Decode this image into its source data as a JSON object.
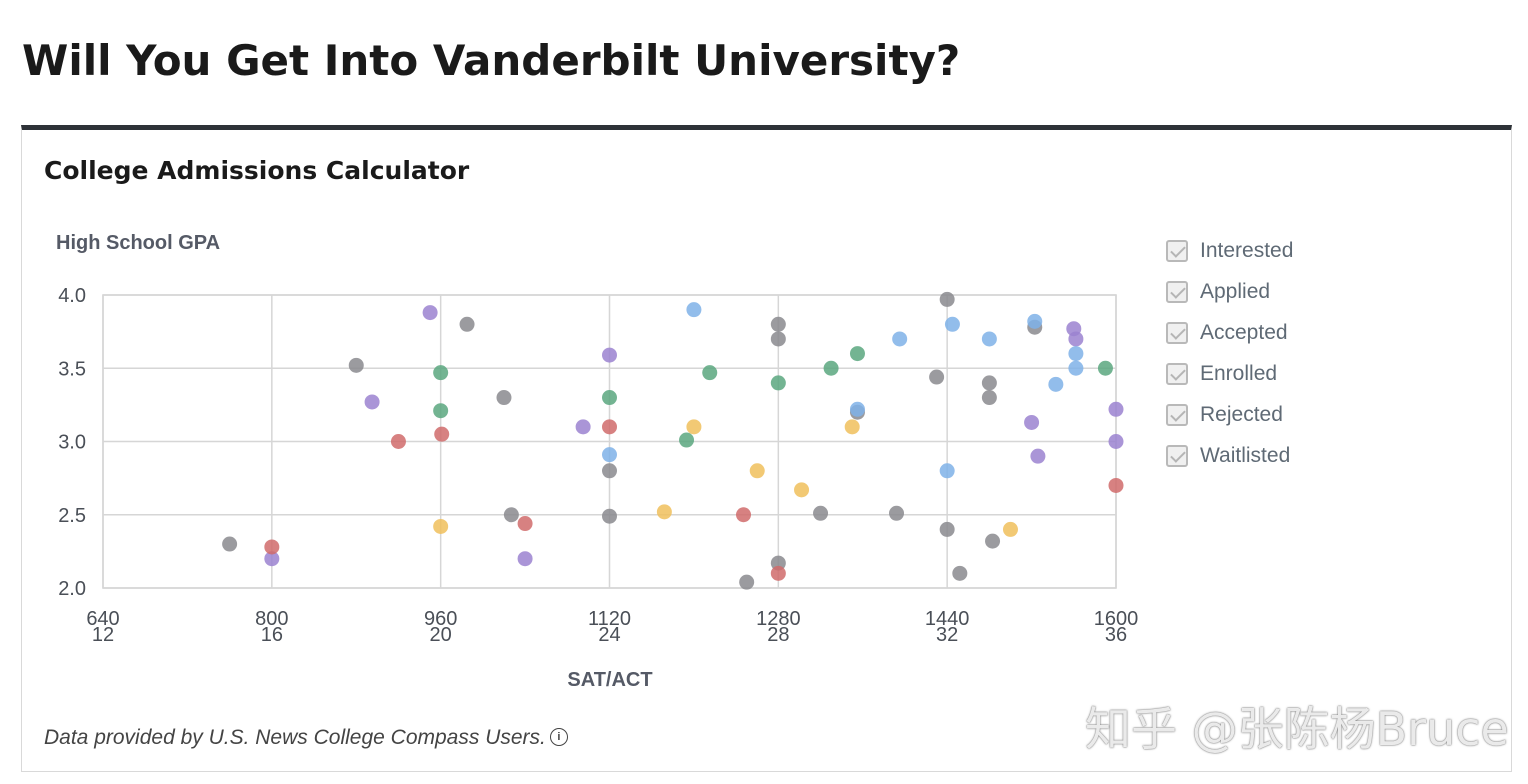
{
  "page": {
    "title": "Will You Get Into Vanderbilt University?",
    "card_title": "College Admissions Calculator",
    "footnote": "Data provided by U.S. News College Compass Users.",
    "info_icon": "i",
    "watermark": "知乎 @张陈杨Bruce"
  },
  "legend": [
    {
      "label": "Interested",
      "color": "#7fb2e8"
    },
    {
      "label": "Applied",
      "color": "#9a8fb5"
    },
    {
      "label": "Accepted",
      "color": "#5aa77f"
    },
    {
      "label": "Enrolled",
      "color": "#7fb2e8"
    },
    {
      "label": "Rejected",
      "color": "#c96a6a"
    },
    {
      "label": "Waitlisted",
      "color": "#f0bf5c"
    }
  ],
  "chart_data": {
    "type": "scatter",
    "title": "",
    "ylabel": "High School GPA",
    "xlabel": "SAT/ACT",
    "xlim": [
      640,
      1600
    ],
    "ylim": [
      2.0,
      4.0
    ],
    "x_ticks_sat": [
      "640",
      "800",
      "960",
      "1120",
      "1280",
      "1440",
      "1600"
    ],
    "x_ticks_act": [
      "12",
      "16",
      "20",
      "24",
      "28",
      "32",
      "36"
    ],
    "y_ticks": [
      "4.0",
      "3.5",
      "3.0",
      "2.5",
      "2.0"
    ],
    "series": [
      {
        "name": "Gray",
        "color": "#8a8a8e",
        "points": [
          [
            760,
            2.3
          ],
          [
            880,
            3.52
          ],
          [
            985,
            3.8
          ],
          [
            1020,
            3.3
          ],
          [
            1027,
            2.5
          ],
          [
            1120,
            2.8
          ],
          [
            1120,
            2.49
          ],
          [
            1250,
            2.04
          ],
          [
            1280,
            3.8
          ],
          [
            1280,
            3.7
          ],
          [
            1280,
            2.17
          ],
          [
            1320,
            2.51
          ],
          [
            1355,
            3.2
          ],
          [
            1392,
            2.51
          ],
          [
            1430,
            3.44
          ],
          [
            1440,
            3.97
          ],
          [
            1440,
            2.4
          ],
          [
            1452,
            2.1
          ],
          [
            1480,
            3.4
          ],
          [
            1480,
            3.3
          ],
          [
            1483,
            2.32
          ],
          [
            1523,
            3.78
          ]
        ]
      },
      {
        "name": "Purple",
        "color": "#9b82d0",
        "points": [
          [
            800,
            2.2
          ],
          [
            895,
            3.27
          ],
          [
            950,
            3.88
          ],
          [
            1040,
            2.2
          ],
          [
            1095,
            3.1
          ],
          [
            1120,
            3.59
          ],
          [
            1520,
            3.13
          ],
          [
            1526,
            2.9
          ],
          [
            1560,
            3.77
          ],
          [
            1562,
            3.7
          ],
          [
            1600,
            3.22
          ],
          [
            1600,
            3.0
          ]
        ]
      },
      {
        "name": "Green",
        "color": "#5aa77f",
        "points": [
          [
            960,
            3.47
          ],
          [
            960,
            3.21
          ],
          [
            1120,
            3.3
          ],
          [
            1193,
            3.01
          ],
          [
            1215,
            3.47
          ],
          [
            1280,
            3.4
          ],
          [
            1330,
            3.5
          ],
          [
            1355,
            3.6
          ],
          [
            1590,
            3.5
          ]
        ]
      },
      {
        "name": "Blue",
        "color": "#7fb2e8",
        "points": [
          [
            1120,
            2.91
          ],
          [
            1200,
            3.9
          ],
          [
            1395,
            3.7
          ],
          [
            1440,
            2.8
          ],
          [
            1445,
            3.8
          ],
          [
            1480,
            3.7
          ],
          [
            1523,
            3.82
          ],
          [
            1543,
            3.39
          ],
          [
            1562,
            3.6
          ],
          [
            1562,
            3.5
          ],
          [
            1355,
            3.22
          ]
        ]
      },
      {
        "name": "Red",
        "color": "#d06b6b",
        "points": [
          [
            800,
            2.28
          ],
          [
            920,
            3.0
          ],
          [
            961,
            3.05
          ],
          [
            1040,
            2.44
          ],
          [
            1120,
            3.1
          ],
          [
            1247,
            2.5
          ],
          [
            1280,
            2.1
          ],
          [
            1600,
            2.7
          ]
        ]
      },
      {
        "name": "Yellow",
        "color": "#f0bf5c",
        "points": [
          [
            960,
            2.42
          ],
          [
            1172,
            2.52
          ],
          [
            1200,
            3.1
          ],
          [
            1260,
            2.8
          ],
          [
            1302,
            2.67
          ],
          [
            1350,
            3.1
          ],
          [
            1500,
            2.4
          ]
        ]
      }
    ]
  }
}
